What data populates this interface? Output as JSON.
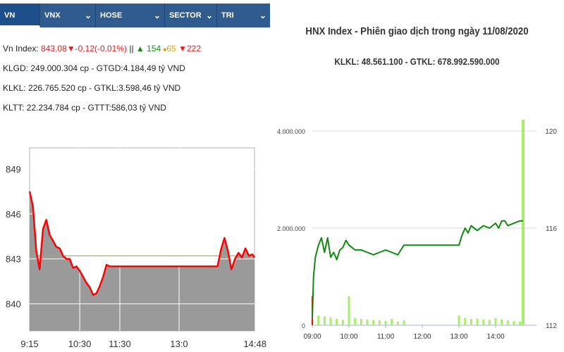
{
  "left_panel": {
    "tabs": [
      {
        "label": "VN INDEX",
        "chevron": false
      },
      {
        "label": "VNX",
        "chevron": true
      },
      {
        "label": "HOSE",
        "chevron": true
      },
      {
        "label": "SECTOR",
        "chevron": true
      },
      {
        "label": "TRI",
        "chevron": true
      }
    ],
    "index_line": {
      "prefix": "Vn Index: ",
      "value": "843,08",
      "down_arrow": "▼",
      "change": "-0,12(-0.01%)",
      "sep": " || ",
      "up_arrow": "▲",
      "up_count": "154",
      "flat_mark": "■",
      "flat_count": "65",
      "down_count": "222"
    },
    "info_lines": [
      "KLGD: 249.000.304 cp - GTGD:4.184,49 tỷ VND",
      "KLKL: 226.765.520 cp - GTKL:3.598,46 tỷ VND",
      "KLTT: 22.234.784 cp - GTTT:586,03 tỷ VND"
    ],
    "colors": {
      "tab_bg": "#2f5b8f",
      "down": "#e02020",
      "up": "#1a8a1a",
      "flat": "#e0a020",
      "line": "#ff0000",
      "area": "#9a9a9a",
      "reference": "#d4a020"
    }
  },
  "right_panel": {
    "title": "HNX Index - Phiên giao dịch trong ngày 11/08/2020",
    "subtitle": "KLKL: 48.561.100 - GTKL: 678.992.590.000",
    "colors": {
      "line": "#0f8a0f",
      "volume": "#a8ee6a",
      "spike": "#cc2020"
    }
  },
  "chart_data": [
    {
      "type": "area",
      "title": "",
      "x": [
        "9:15",
        "9:20",
        "9:25",
        "9:30",
        "9:35",
        "9:40",
        "9:45",
        "9:50",
        "9:55",
        "10:00",
        "10:05",
        "10:10",
        "10:15",
        "10:20",
        "10:25",
        "10:30",
        "10:35",
        "10:40",
        "10:45",
        "10:50",
        "10:55",
        "11:00",
        "11:05",
        "11:10",
        "11:15",
        "11:20",
        "11:25",
        "11:30",
        "13:00",
        "13:15",
        "13:30",
        "13:45",
        "13:55",
        "14:00",
        "14:05",
        "14:10",
        "14:15",
        "14:20",
        "14:25",
        "14:30",
        "14:35",
        "14:40",
        "14:45",
        "14:48"
      ],
      "values": [
        847.5,
        846.5,
        843.5,
        842.3,
        845.0,
        845.6,
        844.6,
        844.2,
        843.8,
        843.7,
        843.2,
        843.0,
        843.0,
        842.4,
        842.5,
        842.2,
        841.8,
        841.4,
        841.1,
        840.6,
        840.7,
        841.2,
        841.8,
        842.6,
        842.5,
        842.5,
        842.5,
        842.5,
        842.5,
        842.5,
        842.5,
        842.5,
        842.5,
        843.6,
        844.4,
        843.5,
        842.3,
        843.0,
        843.4,
        843.1,
        843.7,
        843.2,
        843.3,
        843.1
      ],
      "x_ticks": [
        "9:15",
        "10:30",
        "11:30",
        "13:0",
        "14:48"
      ],
      "y_ticks": [
        849,
        846,
        843,
        840
      ],
      "ylim": [
        838.2,
        850.4
      ],
      "reference": 843.2,
      "grid": true
    },
    {
      "type": "line",
      "title": "HNX Index - Phiên giao dịch trong ngày 11/08/2020",
      "x_ticks": [
        "09:00",
        "10:00",
        "11:00",
        "12:00",
        "13:00",
        "14:00"
      ],
      "y_left_ticks": [
        "4.000.000",
        "2.000.000",
        "0"
      ],
      "y_right_ticks": [
        "120",
        "116",
        "112"
      ],
      "y_left_lim": [
        0,
        4000000
      ],
      "y_right_lim": [
        112,
        120
      ],
      "index_series": {
        "x": [
          "09:00",
          "09:02",
          "09:05",
          "09:10",
          "09:15",
          "09:20",
          "09:25",
          "09:30",
          "09:35",
          "09:40",
          "09:45",
          "09:50",
          "09:55",
          "10:00",
          "10:10",
          "10:20",
          "10:30",
          "10:40",
          "10:50",
          "11:00",
          "11:10",
          "11:20",
          "11:30",
          "11:45",
          "12:00",
          "12:15",
          "12:30",
          "12:45",
          "13:00",
          "13:05",
          "13:10",
          "13:15",
          "13:20",
          "13:30",
          "13:40",
          "13:50",
          "14:00",
          "14:05",
          "14:10",
          "14:15",
          "14:20",
          "14:30",
          "14:40",
          "14:45"
        ],
        "values": [
          112.3,
          114.0,
          114.8,
          115.3,
          115.6,
          115.0,
          115.6,
          114.8,
          115.0,
          114.7,
          115.1,
          115.2,
          115.5,
          115.3,
          115.1,
          115.1,
          115.0,
          114.9,
          115.0,
          115.1,
          115.0,
          114.9,
          115.3,
          115.3,
          115.3,
          115.3,
          115.3,
          115.3,
          115.3,
          115.7,
          116.0,
          115.8,
          116.1,
          115.9,
          116.1,
          116.0,
          116.2,
          116.0,
          116.3,
          116.3,
          116.1,
          116.2,
          116.3,
          116.3
        ]
      },
      "volume_series": {
        "x": [
          "09:00",
          "09:10",
          "09:20",
          "09:30",
          "09:40",
          "09:50",
          "10:00",
          "10:10",
          "10:20",
          "10:30",
          "10:40",
          "10:50",
          "11:00",
          "11:10",
          "11:20",
          "11:30",
          "13:00",
          "13:10",
          "13:20",
          "13:30",
          "13:40",
          "13:50",
          "14:00",
          "14:10",
          "14:20",
          "14:30",
          "14:40",
          "14:45"
        ],
        "values": [
          120000,
          200000,
          180000,
          160000,
          130000,
          110000,
          600000,
          150000,
          130000,
          120000,
          110000,
          100000,
          90000,
          130000,
          80000,
          100000,
          200000,
          150000,
          130000,
          140000,
          120000,
          110000,
          150000,
          120000,
          100000,
          90000,
          80000,
          4800000
        ]
      }
    }
  ]
}
